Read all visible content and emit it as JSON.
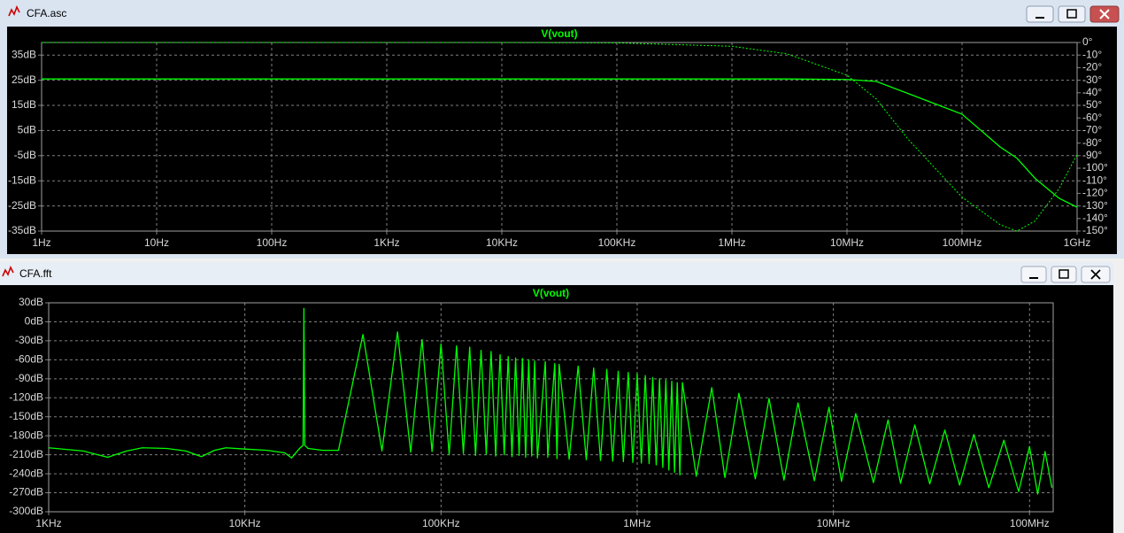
{
  "windows": [
    {
      "title": "CFA.asc"
    },
    {
      "title": "CFA.fft"
    }
  ],
  "chart_data": [
    {
      "type": "line",
      "title": "V(vout)",
      "xscale": "log",
      "grid": true,
      "xlim": [
        1,
        1000000000
      ],
      "xticks": [
        {
          "value": 1,
          "label": "1Hz"
        },
        {
          "value": 10,
          "label": "10Hz"
        },
        {
          "value": 100,
          "label": "100Hz"
        },
        {
          "value": 1000,
          "label": "1KHz"
        },
        {
          "value": 10000,
          "label": "10KHz"
        },
        {
          "value": 100000,
          "label": "100KHz"
        },
        {
          "value": 1000000,
          "label": "1MHz"
        },
        {
          "value": 10000000,
          "label": "10MHz"
        },
        {
          "value": 100000000,
          "label": "100MHz"
        },
        {
          "value": 1000000000,
          "label": "1GHz"
        }
      ],
      "ylim": [
        -35,
        40
      ],
      "yticks": [
        {
          "value": 35,
          "label": "35dB"
        },
        {
          "value": 25,
          "label": "25dB"
        },
        {
          "value": 15,
          "label": "15dB"
        },
        {
          "value": 5,
          "label": "5dB"
        },
        {
          "value": -5,
          "label": "-5dB"
        },
        {
          "value": -15,
          "label": "-15dB"
        },
        {
          "value": -25,
          "label": "-25dB"
        },
        {
          "value": -35,
          "label": "-35dB"
        }
      ],
      "y2lim": [
        -150,
        0
      ],
      "y2ticks": [
        {
          "value": 0,
          "label": "0°"
        },
        {
          "value": -10,
          "label": "-10°"
        },
        {
          "value": -20,
          "label": "-20°"
        },
        {
          "value": -30,
          "label": "-30°"
        },
        {
          "value": -40,
          "label": "-40°"
        },
        {
          "value": -50,
          "label": "-50°"
        },
        {
          "value": -60,
          "label": "-60°"
        },
        {
          "value": -70,
          "label": "-70°"
        },
        {
          "value": -80,
          "label": "-80°"
        },
        {
          "value": -90,
          "label": "-90°"
        },
        {
          "value": -100,
          "label": "-100°"
        },
        {
          "value": -110,
          "label": "-110°"
        },
        {
          "value": -120,
          "label": "-120°"
        },
        {
          "value": -130,
          "label": "-130°"
        },
        {
          "value": -140,
          "label": "-140°"
        },
        {
          "value": -150,
          "label": "-150°"
        }
      ],
      "x": [
        1,
        10,
        100,
        1000,
        10000,
        100000,
        1000000,
        3000000,
        10000000,
        18000000,
        34000000,
        100000000,
        215000000,
        300000000,
        430000000,
        700000000,
        1000000000
      ],
      "series": [
        {
          "color": "#00ff00",
          "dash": "solid",
          "values": [
            25.5,
            25.5,
            25.5,
            25.5,
            25.5,
            25.5,
            25.5,
            25.5,
            25.3,
            24.5,
            19.7,
            11.5,
            -1.6,
            -6,
            -14,
            -22,
            -25.5
          ]
        },
        {
          "color": "#00ff00",
          "dash": "dotted",
          "axis": "y2",
          "values": [
            0,
            0,
            0,
            0,
            0,
            -0.3,
            -3,
            -9,
            -26,
            -45,
            -77,
            -123,
            -145,
            -150,
            -142,
            -116,
            -89
          ]
        }
      ]
    },
    {
      "type": "line",
      "title": "V(vout)",
      "xscale": "log",
      "grid": true,
      "xlim": [
        1000,
        132000000
      ],
      "xticks": [
        {
          "value": 1000,
          "label": "1KHz"
        },
        {
          "value": 10000,
          "label": "10KHz"
        },
        {
          "value": 100000,
          "label": "100KHz"
        },
        {
          "value": 1000000,
          "label": "1MHz"
        },
        {
          "value": 10000000,
          "label": "10MHz"
        },
        {
          "value": 100000000,
          "label": "100MHz"
        }
      ],
      "ylim": [
        -300,
        30
      ],
      "yticks": [
        {
          "value": 30,
          "label": "30dB"
        },
        {
          "value": 0,
          "label": "0dB"
        },
        {
          "value": -30,
          "label": "-30dB"
        },
        {
          "value": -60,
          "label": "-60dB"
        },
        {
          "value": -90,
          "label": "-90dB"
        },
        {
          "value": -120,
          "label": "-120dB"
        },
        {
          "value": -150,
          "label": "-150dB"
        },
        {
          "value": -180,
          "label": "-180dB"
        },
        {
          "value": -210,
          "label": "-210dB"
        },
        {
          "value": -240,
          "label": "-240dB"
        },
        {
          "value": -270,
          "label": "-270dB"
        },
        {
          "value": -300,
          "label": "-300dB"
        }
      ],
      "x": [
        1000,
        1500,
        2000,
        2500,
        3000,
        4000,
        5000,
        6000,
        7000,
        8000,
        10000,
        13000,
        16000,
        17300,
        19000,
        19800,
        20000,
        20200,
        21000,
        25000,
        30000,
        40000,
        50000,
        60000,
        70000,
        80000,
        90000,
        100000,
        110000,
        120000,
        130000,
        140000,
        150000,
        160000,
        170000,
        180000,
        190000,
        200000,
        210000,
        220000,
        230000,
        240000,
        250000,
        260000,
        270000,
        280000,
        290000,
        300000,
        310000,
        340000,
        350000,
        380000,
        390000,
        400000,
        450000,
        500000,
        550000,
        600000,
        650000,
        700000,
        750000,
        800000,
        850000,
        900000,
        950000,
        1000000,
        1050000,
        1100000,
        1150000,
        1200000,
        1250000,
        1300000,
        1350000,
        1400000,
        1450000,
        1500000,
        1550000,
        1600000,
        1650000,
        1700000,
        2000000,
        2400000,
        2800000,
        3300000,
        4000000,
        4700000,
        5600000,
        6600000,
        8000000,
        9500000,
        11000000,
        13000000,
        16000000,
        19000000,
        22000000,
        26000000,
        31000000,
        37000000,
        44000000,
        52000000,
        62000000,
        74000000,
        88000000,
        100000000,
        110000000,
        120000000,
        130000000
      ],
      "series": [
        {
          "color": "#00ff00",
          "dash": "solid",
          "values": [
            -199,
            -204,
            -214,
            -204,
            -199,
            -200,
            -204,
            -213,
            -203,
            -199,
            -201,
            -203,
            -207,
            -215,
            -200,
            -195,
            21,
            -195,
            -200,
            -203,
            -203,
            -20,
            -204,
            -16,
            -206,
            -28,
            -205,
            -35,
            -210,
            -38,
            -208,
            -40,
            -211,
            -45,
            -209,
            -47,
            -212,
            -52,
            -210,
            -55,
            -213,
            -57,
            -211,
            -58,
            -214,
            -60,
            -212,
            -62,
            -215,
            -63,
            -214,
            -66,
            -216,
            -67,
            -217,
            -70,
            -218,
            -73,
            -219,
            -75,
            -220,
            -78,
            -221,
            -80,
            -222,
            -82,
            -223,
            -85,
            -224,
            -88,
            -226,
            -90,
            -230,
            -92,
            -234,
            -94,
            -238,
            -96,
            -242,
            -96,
            -244,
            -104,
            -246,
            -113,
            -248,
            -121,
            -250,
            -128,
            -251,
            -135,
            -252,
            -145,
            -254,
            -155,
            -255,
            -163,
            -256,
            -171,
            -258,
            -178,
            -262,
            -187,
            -268,
            -197,
            -272,
            -205,
            -262
          ]
        }
      ]
    }
  ]
}
